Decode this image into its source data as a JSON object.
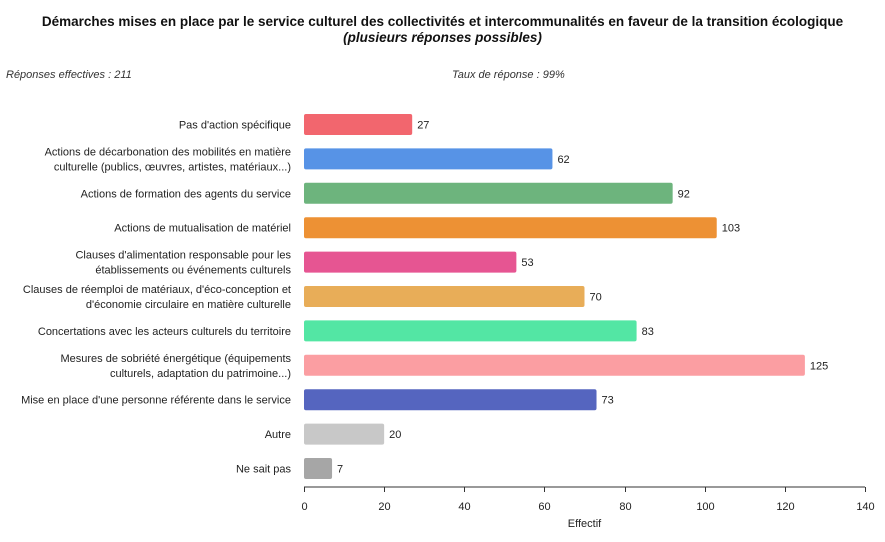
{
  "header": {
    "title": "Démarches mises en place par le service culturel des collectivités et intercommunalités en faveur de la transition écologique",
    "title_italic": "(plusieurs réponses possibles)",
    "responses_label": "Réponses effectives : 211",
    "rate_label": "Taux de réponse : 99%"
  },
  "chart_data": {
    "type": "bar",
    "orientation": "horizontal",
    "xlabel": "Effectif",
    "ylabel": "",
    "xlim": [
      0,
      140
    ],
    "ticks": [
      0,
      20,
      40,
      60,
      80,
      100,
      120,
      140
    ],
    "grid": false,
    "categories": [
      {
        "lines": [
          "Pas d'action spécifique"
        ],
        "value": 27,
        "color": "#f2666e"
      },
      {
        "lines": [
          "Actions de décarbonation des mobilités en matière",
          "culturelle (publics, œuvres, artistes, matériaux...)"
        ],
        "value": 62,
        "color": "#5793e6"
      },
      {
        "lines": [
          "Actions de formation des agents du service"
        ],
        "value": 92,
        "color": "#6db47d"
      },
      {
        "lines": [
          "Actions de mutualisation de matériel"
        ],
        "value": 103,
        "color": "#ed9134"
      },
      {
        "lines": [
          "Clauses d'alimentation responsable pour les",
          "établissements ou événements culturels"
        ],
        "value": 53,
        "color": "#e65592"
      },
      {
        "lines": [
          "Clauses de réemploi de matériaux, d'éco-conception et",
          "d'économie circulaire en matière culturelle"
        ],
        "value": 70,
        "color": "#e8ad58"
      },
      {
        "lines": [
          "Concertations avec les acteurs culturels du territoire"
        ],
        "value": 83,
        "color": "#53e6a4"
      },
      {
        "lines": [
          "Mesures de sobriété énergétique (équipements",
          "culturels, adaptation du patrimoine...)"
        ],
        "value": 125,
        "color": "#fb9ea2"
      },
      {
        "lines": [
          "Mise en place d'une personne référente dans le service"
        ],
        "value": 73,
        "color": "#5565bf"
      },
      {
        "lines": [
          "Autre"
        ],
        "value": 20,
        "color": "#c8c8c8"
      },
      {
        "lines": [
          "Ne sait pas"
        ],
        "value": 7,
        "color": "#a6a6a6"
      }
    ]
  }
}
